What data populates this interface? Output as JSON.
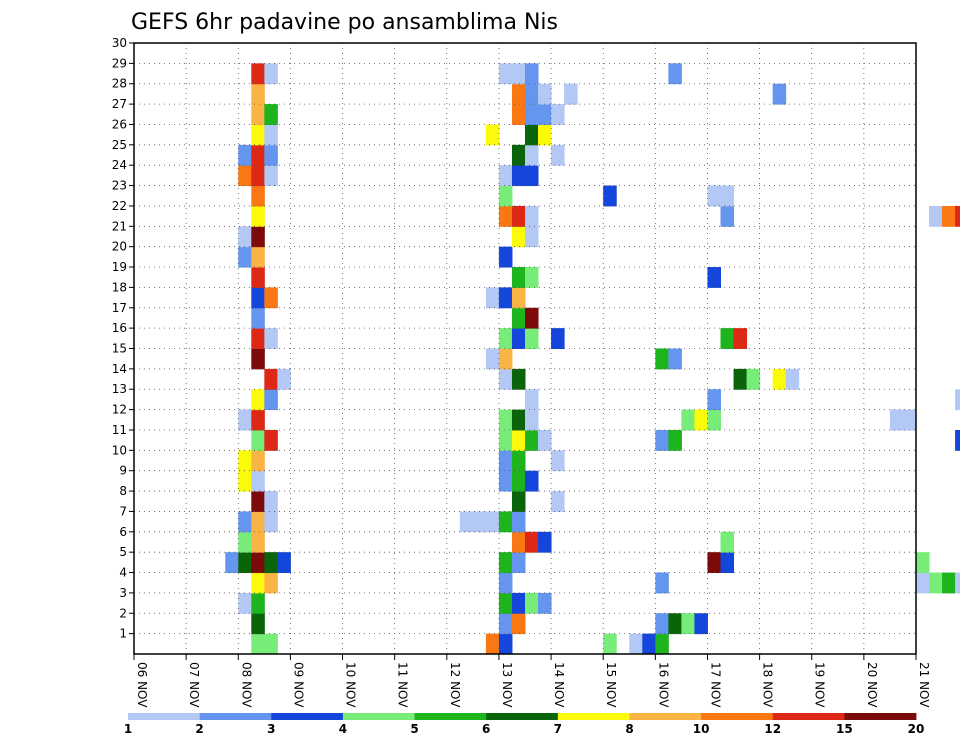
{
  "chart_data": {
    "type": "heatmap",
    "title": "GEFS 6hr padavine po ansamblima Nis",
    "xlabel": "",
    "ylabel": "",
    "x_ticks": [
      "06 NOV",
      "07 NOV",
      "08 NOV",
      "09 NOV",
      "10 NOV",
      "11 NOV",
      "12 NOV",
      "13 NOV",
      "14 NOV",
      "15 NOV",
      "16 NOV",
      "17 NOV",
      "18 NOV",
      "19 NOV",
      "20 NOV",
      "21 NOV"
    ],
    "y_ticks": [
      "1",
      "2",
      "3",
      "4",
      "5",
      "6",
      "7",
      "8",
      "9",
      "10",
      "11",
      "12",
      "13",
      "14",
      "15",
      "16",
      "17",
      "18",
      "19",
      "20",
      "21",
      "22",
      "23",
      "24",
      "25",
      "26",
      "27",
      "28",
      "29",
      "30"
    ],
    "ylim": [
      0,
      30
    ],
    "time_steps_per_day": 4,
    "colorbar": {
      "tick_labels": [
        "1",
        "2",
        "3",
        "4",
        "5",
        "6",
        "7",
        "8",
        "10",
        "12",
        "15",
        "20"
      ],
      "colors": [
        "#b4c8f5",
        "#6496f0",
        "#1446dc",
        "#78ec78",
        "#1eb41e",
        "#0a640a",
        "#fafa0a",
        "#fab446",
        "#fa7814",
        "#dc2814",
        "#7d0a0a"
      ]
    },
    "values": [
      {
        "m": 1,
        "c": [
          [
            9,
            4
          ],
          [
            10,
            4
          ],
          [
            27,
            9
          ],
          [
            28,
            3
          ],
          [
            36,
            4
          ],
          [
            38,
            1
          ],
          [
            39,
            3
          ],
          [
            40,
            5
          ],
          [
            83,
            2
          ],
          [
            84,
            4
          ]
        ]
      },
      {
        "m": 2,
        "c": [
          [
            9,
            6
          ],
          [
            28,
            2
          ],
          [
            29,
            9
          ],
          [
            40,
            2
          ],
          [
            41,
            6
          ],
          [
            42,
            4
          ],
          [
            43,
            3
          ]
        ]
      },
      {
        "m": 3,
        "c": [
          [
            8,
            1
          ],
          [
            9,
            5
          ],
          [
            28,
            5
          ],
          [
            29,
            3
          ],
          [
            30,
            4
          ],
          [
            31,
            2
          ],
          [
            79,
            2
          ],
          [
            80,
            1
          ],
          [
            81,
            4
          ],
          [
            82,
            4
          ]
        ]
      },
      {
        "m": 4,
        "c": [
          [
            9,
            7
          ],
          [
            10,
            8
          ],
          [
            28,
            2
          ],
          [
            40,
            2
          ],
          [
            60,
            1
          ],
          [
            61,
            4
          ],
          [
            62,
            5
          ],
          [
            63,
            1
          ],
          [
            64,
            2
          ],
          [
            65,
            1
          ],
          [
            66,
            2
          ],
          [
            67,
            1
          ],
          [
            68,
            4
          ]
        ]
      },
      {
        "m": 5,
        "c": [
          [
            7,
            2
          ],
          [
            8,
            6
          ],
          [
            9,
            11
          ],
          [
            10,
            6
          ],
          [
            11,
            3
          ],
          [
            28,
            5
          ],
          [
            29,
            2
          ],
          [
            44,
            11
          ],
          [
            45,
            3
          ],
          [
            60,
            4
          ],
          [
            66,
            1
          ]
        ]
      },
      {
        "m": 6,
        "c": [
          [
            8,
            4
          ],
          [
            9,
            8
          ],
          [
            29,
            9
          ],
          [
            30,
            10
          ],
          [
            31,
            3
          ],
          [
            45,
            4
          ]
        ]
      },
      {
        "m": 7,
        "c": [
          [
            8,
            2
          ],
          [
            9,
            8
          ],
          [
            10,
            1
          ],
          [
            25,
            1
          ],
          [
            26,
            1
          ],
          [
            27,
            1
          ],
          [
            28,
            5
          ],
          [
            29,
            2
          ],
          [
            70,
            6
          ],
          [
            71,
            4
          ],
          [
            72,
            1
          ],
          [
            73,
            1
          ],
          [
            86,
            1
          ],
          [
            90,
            4
          ]
        ]
      },
      {
        "m": 8,
        "c": [
          [
            9,
            11
          ],
          [
            10,
            1
          ],
          [
            29,
            6
          ],
          [
            32,
            1
          ],
          [
            67,
            1
          ],
          [
            68,
            2
          ],
          [
            69,
            5
          ],
          [
            70,
            5
          ]
        ]
      },
      {
        "m": 9,
        "c": [
          [
            8,
            7
          ],
          [
            9,
            1
          ],
          [
            28,
            2
          ],
          [
            29,
            5
          ],
          [
            30,
            3
          ],
          [
            64,
            6
          ],
          [
            65,
            6
          ],
          [
            66,
            2
          ],
          [
            67,
            1
          ],
          [
            68,
            2
          ],
          [
            70,
            1
          ]
        ]
      },
      {
        "m": 10,
        "c": [
          [
            8,
            7
          ],
          [
            9,
            8
          ],
          [
            28,
            2
          ],
          [
            29,
            5
          ],
          [
            32,
            1
          ],
          [
            78,
            4
          ],
          [
            79,
            2
          ],
          [
            81,
            1
          ]
        ]
      },
      {
        "m": 11,
        "c": [
          [
            9,
            4
          ],
          [
            10,
            10
          ],
          [
            28,
            4
          ],
          [
            29,
            7
          ],
          [
            30,
            5
          ],
          [
            31,
            1
          ],
          [
            40,
            2
          ],
          [
            41,
            5
          ],
          [
            63,
            3
          ],
          [
            64,
            8
          ],
          [
            78,
            3
          ]
        ]
      },
      {
        "m": 12,
        "c": [
          [
            8,
            1
          ],
          [
            9,
            10
          ],
          [
            28,
            4
          ],
          [
            29,
            6
          ],
          [
            30,
            1
          ],
          [
            42,
            4
          ],
          [
            43,
            7
          ],
          [
            44,
            4
          ],
          [
            58,
            1
          ],
          [
            59,
            1
          ],
          [
            78,
            4
          ],
          [
            79,
            1
          ]
        ]
      },
      {
        "m": 13,
        "c": [
          [
            9,
            7
          ],
          [
            10,
            2
          ],
          [
            30,
            1
          ],
          [
            44,
            2
          ],
          [
            63,
            1
          ],
          [
            67,
            1
          ],
          [
            68,
            1
          ],
          [
            69,
            1
          ]
        ]
      },
      {
        "m": 14,
        "c": [
          [
            10,
            10
          ],
          [
            11,
            1
          ],
          [
            28,
            1
          ],
          [
            29,
            6
          ],
          [
            46,
            6
          ],
          [
            47,
            4
          ],
          [
            49,
            7
          ],
          [
            50,
            1
          ],
          [
            83,
            2
          ],
          [
            84,
            3
          ],
          [
            85,
            3
          ],
          [
            86,
            1
          ]
        ]
      },
      {
        "m": 15,
        "c": [
          [
            9,
            11
          ],
          [
            27,
            1
          ],
          [
            28,
            8
          ],
          [
            40,
            5
          ],
          [
            41,
            2
          ],
          [
            84,
            3
          ],
          [
            85,
            3
          ],
          [
            86,
            6
          ],
          [
            87,
            3
          ],
          [
            88,
            2
          ]
        ]
      },
      {
        "m": 16,
        "c": [
          [
            9,
            10
          ],
          [
            10,
            1
          ],
          [
            28,
            4
          ],
          [
            29,
            3
          ],
          [
            30,
            4
          ],
          [
            32,
            3
          ],
          [
            45,
            5
          ],
          [
            46,
            10
          ],
          [
            65,
            9
          ],
          [
            66,
            2
          ],
          [
            75,
            9
          ],
          [
            76,
            9
          ],
          [
            77,
            2
          ]
        ]
      },
      {
        "m": 17,
        "c": [
          [
            9,
            2
          ],
          [
            29,
            5
          ],
          [
            30,
            11
          ],
          [
            68,
            2
          ],
          [
            69,
            6
          ],
          [
            70,
            2
          ]
        ]
      },
      {
        "m": 18,
        "c": [
          [
            9,
            3
          ],
          [
            10,
            9
          ],
          [
            27,
            1
          ],
          [
            28,
            3
          ],
          [
            29,
            8
          ]
        ]
      },
      {
        "m": 19,
        "c": [
          [
            9,
            10
          ],
          [
            29,
            5
          ],
          [
            30,
            4
          ],
          [
            44,
            3
          ],
          [
            84,
            1
          ]
        ]
      },
      {
        "m": 20,
        "c": [
          [
            8,
            2
          ],
          [
            9,
            8
          ],
          [
            28,
            3
          ],
          [
            75,
            2
          ],
          [
            76,
            9
          ],
          [
            77,
            1
          ]
        ]
      },
      {
        "m": 21,
        "c": [
          [
            8,
            1
          ],
          [
            9,
            11
          ],
          [
            29,
            7
          ],
          [
            30,
            1
          ],
          [
            73,
            2
          ],
          [
            74,
            2
          ],
          [
            75,
            2
          ],
          [
            77,
            1
          ]
        ]
      },
      {
        "m": 22,
        "c": [
          [
            9,
            7
          ],
          [
            28,
            9
          ],
          [
            29,
            10
          ],
          [
            30,
            1
          ],
          [
            45,
            2
          ],
          [
            61,
            1
          ],
          [
            62,
            9
          ],
          [
            63,
            10
          ],
          [
            64,
            5
          ],
          [
            72,
            1
          ],
          [
            73,
            5
          ]
        ]
      },
      {
        "m": 23,
        "c": [
          [
            9,
            9
          ],
          [
            28,
            4
          ],
          [
            36,
            3
          ],
          [
            44,
            1
          ],
          [
            45,
            1
          ],
          [
            65,
            2
          ]
        ]
      },
      {
        "m": 24,
        "c": [
          [
            8,
            9
          ],
          [
            9,
            10
          ],
          [
            10,
            1
          ],
          [
            28,
            1
          ],
          [
            29,
            3
          ],
          [
            30,
            3
          ]
        ]
      },
      {
        "m": 25,
        "c": [
          [
            8,
            2
          ],
          [
            9,
            10
          ],
          [
            10,
            2
          ],
          [
            29,
            6
          ],
          [
            30,
            1
          ],
          [
            32,
            1
          ],
          [
            85,
            7
          ]
        ]
      },
      {
        "m": 26,
        "c": [
          [
            9,
            7
          ],
          [
            10,
            1
          ],
          [
            27,
            7
          ],
          [
            30,
            6
          ],
          [
            31,
            7
          ]
        ]
      },
      {
        "m": 27,
        "c": [
          [
            9,
            8
          ],
          [
            10,
            5
          ],
          [
            29,
            9
          ],
          [
            30,
            2
          ],
          [
            31,
            2
          ],
          [
            32,
            1
          ],
          [
            71,
            3
          ],
          [
            72,
            9
          ],
          [
            73,
            4
          ]
        ]
      },
      {
        "m": 28,
        "c": [
          [
            9,
            8
          ],
          [
            29,
            9
          ],
          [
            30,
            2
          ],
          [
            31,
            1
          ],
          [
            33,
            1
          ],
          [
            49,
            2
          ],
          [
            65,
            1
          ]
        ]
      },
      {
        "m": 29,
        "c": [
          [
            9,
            10
          ],
          [
            10,
            1
          ],
          [
            28,
            1
          ],
          [
            29,
            1
          ],
          [
            30,
            2
          ],
          [
            41,
            2
          ],
          [
            64,
            1
          ],
          [
            65,
            3
          ],
          [
            86,
            2
          ],
          [
            87,
            1
          ],
          [
            88,
            1
          ],
          [
            89,
            1
          ]
        ]
      }
    ]
  }
}
